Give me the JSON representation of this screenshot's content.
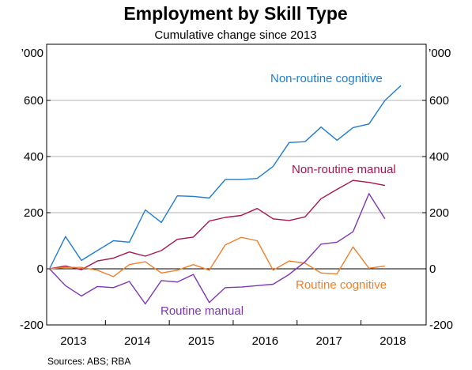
{
  "chart_data": {
    "type": "line",
    "title": "Employment by Skill Type",
    "subtitle": "Cumulative change since 2013",
    "unit_left": "’000",
    "unit_right": "’000",
    "ylim": [
      -200,
      800
    ],
    "yticks": [
      -200,
      0,
      200,
      400,
      600
    ],
    "ytick_labels": [
      "-200",
      "0",
      "200",
      "400",
      "600"
    ],
    "xlim": [
      2012.58,
      2018.52
    ],
    "xtick_labels": [
      {
        "label": "2013",
        "x": 2013.0
      },
      {
        "label": "2014",
        "x": 2014.0
      },
      {
        "label": "2015",
        "x": 2015.0
      },
      {
        "label": "2016",
        "x": 2016.0
      },
      {
        "label": "2017",
        "x": 2017.0
      },
      {
        "label": "2018",
        "x": 2018.0
      }
    ],
    "year_boundaries": [
      2013.5,
      2014.5,
      2015.5,
      2016.5,
      2017.5
    ],
    "grid": true,
    "x": [
      2012.625,
      2012.875,
      2013.125,
      2013.375,
      2013.625,
      2013.875,
      2014.125,
      2014.375,
      2014.625,
      2014.875,
      2015.125,
      2015.375,
      2015.625,
      2015.875,
      2016.125,
      2016.375,
      2016.625,
      2016.875,
      2017.125,
      2017.375,
      2017.625,
      2017.875,
      2018.125
    ],
    "series": [
      {
        "name": "Non-routine cognitive",
        "color": "#1f7ccf",
        "values": [
          0,
          115,
          30,
          65,
          100,
          95,
          210,
          165,
          260,
          258,
          252,
          318,
          318,
          322,
          365,
          450,
          453,
          505,
          458,
          503,
          516,
          600,
          653
        ]
      },
      {
        "name": "Non-routine manual",
        "color": "#a8144f",
        "values": [
          0,
          10,
          -3,
          28,
          38,
          60,
          45,
          65,
          105,
          113,
          170,
          183,
          190,
          215,
          178,
          172,
          185,
          250,
          283,
          315,
          308,
          297,
          null
        ]
      },
      {
        "name": "Routine cognitive",
        "color": "#f07f2b",
        "values": [
          0,
          5,
          5,
          -5,
          -28,
          15,
          25,
          -15,
          -5,
          15,
          -5,
          85,
          112,
          100,
          -5,
          28,
          20,
          -15,
          -18,
          78,
          2,
          10,
          null
        ]
      },
      {
        "name": "Routine manual",
        "color": "#7e36b3",
        "values": [
          0,
          -60,
          -97,
          -63,
          -67,
          -45,
          -125,
          -42,
          -47,
          -20,
          -120,
          -67,
          -65,
          -60,
          -55,
          -20,
          25,
          88,
          95,
          132,
          268,
          178,
          null
        ]
      }
    ],
    "source": "Sources:   ABS; RBA"
  }
}
